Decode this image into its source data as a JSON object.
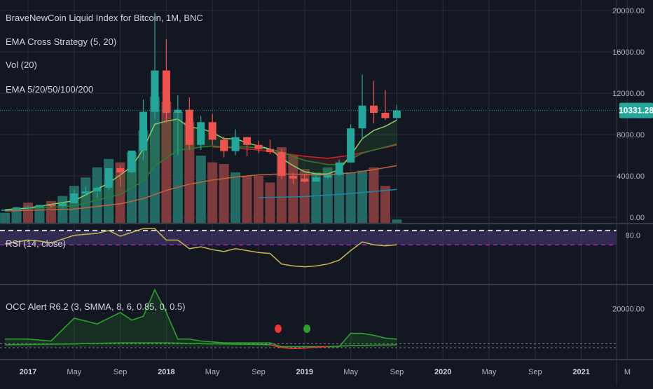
{
  "colors": {
    "background": "#131722",
    "grid": "#2a2e39",
    "separator": "#363a45",
    "up": "#26a69a",
    "down": "#ef5350",
    "vol_up": "#246a64",
    "vol_down": "#7d3b3d",
    "ema5": "#88cc66",
    "ema20": "#2e7d32",
    "ema50": "#c62828",
    "ema100": "#c0643a",
    "ema200": "#1e88a8",
    "price_line": "#26a69a",
    "price_badge": "#26a69a",
    "rsi_line": "#c9b84b",
    "rsi_band": "#4a3c78",
    "rsi_upper_dash": "#d1d4dc",
    "rsi_lower_dash": "#9c27b0",
    "occ_green": "#2e9e2e",
    "occ_red": "#e53935"
  },
  "chart_data": [
    {
      "type": "candlestick",
      "title": "BraveNewCoin Liquid Index for Bitcoin, 1M, BNC",
      "indicators": [
        "EMA Cross Strategy (5, 20)",
        "Vol (20)",
        "EMA 5/20/50/100/200"
      ],
      "x_ticks": [
        "2017",
        "May",
        "Sep",
        "2018",
        "May",
        "Sep",
        "2019",
        "May",
        "Sep",
        "2020",
        "May",
        "Sep",
        "2021",
        "M"
      ],
      "x_tick_months": [
        0,
        4,
        8,
        12,
        16,
        20,
        24,
        28,
        32,
        36,
        40,
        44,
        48,
        52
      ],
      "y_ticks": [
        "20000.00",
        "16000.00",
        "12000.00",
        "8000.00",
        "4000.00",
        "0.00"
      ],
      "y_tick_values": [
        20000,
        16000,
        12000,
        8000,
        4000,
        0
      ],
      "ylim": [
        0,
        20000
      ],
      "last_price": "10331.28",
      "last_price_value": 10331,
      "candles": [
        {
          "m": -2,
          "o": 700,
          "h": 760,
          "l": 680,
          "c": 740
        },
        {
          "m": -1,
          "o": 740,
          "h": 980,
          "l": 730,
          "c": 960
        },
        {
          "m": 0,
          "o": 960,
          "h": 1150,
          "l": 750,
          "c": 970
        },
        {
          "m": 1,
          "o": 970,
          "h": 1200,
          "l": 920,
          "c": 1190
        },
        {
          "m": 2,
          "o": 1190,
          "h": 1300,
          "l": 900,
          "c": 1080
        },
        {
          "m": 3,
          "o": 1080,
          "h": 1450,
          "l": 890,
          "c": 1350
        },
        {
          "m": 4,
          "o": 1350,
          "h": 2700,
          "l": 1330,
          "c": 2300
        },
        {
          "m": 5,
          "o": 2300,
          "h": 3000,
          "l": 2150,
          "c": 2500
        },
        {
          "m": 6,
          "o": 2500,
          "h": 2950,
          "l": 1850,
          "c": 2850
        },
        {
          "m": 7,
          "o": 2850,
          "h": 4700,
          "l": 2650,
          "c": 4750
        },
        {
          "m": 8,
          "o": 4750,
          "h": 5000,
          "l": 3000,
          "c": 4350
        },
        {
          "m": 9,
          "o": 4350,
          "h": 6450,
          "l": 4250,
          "c": 6450
        },
        {
          "m": 10,
          "o": 6450,
          "h": 11400,
          "l": 5500,
          "c": 10200
        },
        {
          "m": 11,
          "o": 10200,
          "h": 19800,
          "l": 9500,
          "c": 14200
        },
        {
          "m": 12,
          "o": 14200,
          "h": 17200,
          "l": 9100,
          "c": 10100
        },
        {
          "m": 13,
          "o": 10100,
          "h": 11800,
          "l": 6000,
          "c": 10400
        },
        {
          "m": 14,
          "o": 10400,
          "h": 11600,
          "l": 6500,
          "c": 7000
        },
        {
          "m": 15,
          "o": 7000,
          "h": 9800,
          "l": 6500,
          "c": 9200
        },
        {
          "m": 16,
          "o": 9200,
          "h": 10000,
          "l": 7000,
          "c": 7500
        },
        {
          "m": 17,
          "o": 7500,
          "h": 7800,
          "l": 5800,
          "c": 6400
        },
        {
          "m": 18,
          "o": 6400,
          "h": 8500,
          "l": 6000,
          "c": 7750
        },
        {
          "m": 19,
          "o": 7750,
          "h": 7800,
          "l": 5900,
          "c": 7000
        },
        {
          "m": 20,
          "o": 7000,
          "h": 7400,
          "l": 6200,
          "c": 6600
        },
        {
          "m": 21,
          "o": 6600,
          "h": 7500,
          "l": 6100,
          "c": 6300
        },
        {
          "m": 22,
          "o": 6300,
          "h": 6600,
          "l": 3700,
          "c": 4000
        },
        {
          "m": 23,
          "o": 4000,
          "h": 4300,
          "l": 3200,
          "c": 3750
        },
        {
          "m": 24,
          "o": 3750,
          "h": 4100,
          "l": 3350,
          "c": 3450
        },
        {
          "m": 25,
          "o": 3450,
          "h": 4200,
          "l": 3400,
          "c": 3850
        },
        {
          "m": 26,
          "o": 3850,
          "h": 4200,
          "l": 3700,
          "c": 4100
        },
        {
          "m": 27,
          "o": 4100,
          "h": 5600,
          "l": 4000,
          "c": 5300
        },
        {
          "m": 28,
          "o": 5300,
          "h": 9000,
          "l": 5300,
          "c": 8600
        },
        {
          "m": 29,
          "o": 8600,
          "h": 13800,
          "l": 7500,
          "c": 10800
        },
        {
          "m": 30,
          "o": 10800,
          "h": 13200,
          "l": 9100,
          "c": 10100
        },
        {
          "m": 31,
          "o": 10100,
          "h": 12300,
          "l": 9400,
          "c": 9600
        },
        {
          "m": 32,
          "o": 9600,
          "h": 10900,
          "l": 9400,
          "c": 10331
        }
      ],
      "ema5": [
        [
          -2,
          740
        ],
        [
          0,
          900
        ],
        [
          4,
          1600
        ],
        [
          7,
          3300
        ],
        [
          9,
          4900
        ],
        [
          10,
          6600
        ],
        [
          11,
          9000
        ],
        [
          12,
          9300
        ],
        [
          13,
          9500
        ],
        [
          14,
          8700
        ],
        [
          15,
          8600
        ],
        [
          16,
          8200
        ],
        [
          17,
          7600
        ],
        [
          18,
          7600
        ],
        [
          19,
          7200
        ],
        [
          20,
          6900
        ],
        [
          21,
          6600
        ],
        [
          22,
          5700
        ],
        [
          23,
          5000
        ],
        [
          24,
          4400
        ],
        [
          25,
          4200
        ],
        [
          26,
          4200
        ],
        [
          27,
          4600
        ],
        [
          28,
          6000
        ],
        [
          29,
          7600
        ],
        [
          30,
          8400
        ],
        [
          31,
          8800
        ],
        [
          32,
          9400
        ]
      ],
      "ema20": [
        [
          -2,
          700
        ],
        [
          4,
          1100
        ],
        [
          8,
          2200
        ],
        [
          10,
          3500
        ],
        [
          11,
          5000
        ],
        [
          12,
          5700
        ],
        [
          13,
          6500
        ],
        [
          14,
          6600
        ],
        [
          15,
          6800
        ],
        [
          16,
          6900
        ],
        [
          17,
          6800
        ],
        [
          18,
          6800
        ],
        [
          19,
          6800
        ],
        [
          20,
          6700
        ],
        [
          21,
          6600
        ],
        [
          22,
          6300
        ],
        [
          23,
          5900
        ],
        [
          24,
          5500
        ],
        [
          25,
          5300
        ],
        [
          26,
          5100
        ],
        [
          27,
          5100
        ],
        [
          28,
          5600
        ],
        [
          29,
          6200
        ],
        [
          30,
          6500
        ],
        [
          31,
          6800
        ],
        [
          32,
          7100
        ]
      ],
      "ema50": [
        [
          16,
          6800
        ],
        [
          18,
          6700
        ],
        [
          20,
          6500
        ],
        [
          22,
          6200
        ],
        [
          24,
          5900
        ],
        [
          26,
          5700
        ],
        [
          28,
          6000
        ],
        [
          30,
          6500
        ],
        [
          32,
          7000
        ]
      ],
      "ema100": [
        [
          -2,
          600
        ],
        [
          4,
          800
        ],
        [
          8,
          1300
        ],
        [
          10,
          1800
        ],
        [
          12,
          2600
        ],
        [
          14,
          3200
        ],
        [
          16,
          3600
        ],
        [
          18,
          3900
        ],
        [
          20,
          4100
        ],
        [
          22,
          4200
        ],
        [
          24,
          4150
        ],
        [
          26,
          4100
        ],
        [
          28,
          4300
        ],
        [
          30,
          4600
        ],
        [
          32,
          5000
        ]
      ],
      "ema200": [
        [
          20,
          1900
        ],
        [
          24,
          2000
        ],
        [
          28,
          2300
        ],
        [
          32,
          2700
        ]
      ],
      "volumes": [
        {
          "m": -2,
          "v": 0.06,
          "up": true
        },
        {
          "m": -1,
          "v": 0.08,
          "up": true
        },
        {
          "m": 0,
          "v": 0.12,
          "up": false
        },
        {
          "m": 1,
          "v": 0.1,
          "up": true
        },
        {
          "m": 2,
          "v": 0.13,
          "up": false
        },
        {
          "m": 3,
          "v": 0.16,
          "up": true
        },
        {
          "m": 4,
          "v": 0.22,
          "up": true
        },
        {
          "m": 5,
          "v": 0.27,
          "up": true
        },
        {
          "m": 6,
          "v": 0.33,
          "up": true
        },
        {
          "m": 7,
          "v": 0.38,
          "up": true
        },
        {
          "m": 8,
          "v": 0.36,
          "up": false
        },
        {
          "m": 9,
          "v": 0.42,
          "up": true
        },
        {
          "m": 10,
          "v": 0.55,
          "up": true
        },
        {
          "m": 11,
          "v": 0.75,
          "up": true
        },
        {
          "m": 12,
          "v": 0.72,
          "up": false
        },
        {
          "m": 13,
          "v": 0.66,
          "up": true
        },
        {
          "m": 14,
          "v": 0.6,
          "up": false
        },
        {
          "m": 15,
          "v": 0.4,
          "up": true
        },
        {
          "m": 16,
          "v": 0.36,
          "up": false
        },
        {
          "m": 17,
          "v": 0.35,
          "up": false
        },
        {
          "m": 18,
          "v": 0.3,
          "up": true
        },
        {
          "m": 19,
          "v": 0.28,
          "up": false
        },
        {
          "m": 20,
          "v": 0.28,
          "up": false
        },
        {
          "m": 21,
          "v": 0.24,
          "up": false
        },
        {
          "m": 22,
          "v": 0.45,
          "up": false
        },
        {
          "m": 23,
          "v": 0.4,
          "up": false
        },
        {
          "m": 24,
          "v": 0.32,
          "up": false
        },
        {
          "m": 25,
          "v": 0.3,
          "up": true
        },
        {
          "m": 26,
          "v": 0.33,
          "up": true
        },
        {
          "m": 27,
          "v": 0.3,
          "up": true
        },
        {
          "m": 28,
          "v": 0.3,
          "up": true
        },
        {
          "m": 29,
          "v": 0.31,
          "up": true
        },
        {
          "m": 30,
          "v": 0.33,
          "up": false
        },
        {
          "m": 31,
          "v": 0.22,
          "up": false
        },
        {
          "m": 32,
          "v": 0.02,
          "up": true
        }
      ]
    },
    {
      "type": "line",
      "title": "RSI (14, close)",
      "y_ticks": [
        "80.0"
      ],
      "y_tick_values": [
        80
      ],
      "ylim": [
        30,
        90
      ],
      "upper_band": 85,
      "lower_band": 70,
      "series": [
        {
          "values": [
            [
              -2,
              71
            ],
            [
              0,
              75
            ],
            [
              1,
              74
            ],
            [
              2,
              72
            ],
            [
              4,
              80
            ],
            [
              5,
              81
            ],
            [
              6,
              82
            ],
            [
              7,
              85
            ],
            [
              8,
              79
            ],
            [
              9,
              83
            ],
            [
              10,
              87
            ],
            [
              11,
              87
            ],
            [
              12,
              75
            ],
            [
              13,
              75
            ],
            [
              14,
              66
            ],
            [
              15,
              68
            ],
            [
              16,
              65
            ],
            [
              17,
              63
            ],
            [
              18,
              66
            ],
            [
              19,
              64
            ],
            [
              20,
              62
            ],
            [
              21,
              61
            ],
            [
              22,
              50
            ],
            [
              23,
              48
            ],
            [
              24,
              47
            ],
            [
              25,
              48
            ],
            [
              26,
              50
            ],
            [
              27,
              54
            ],
            [
              28,
              64
            ],
            [
              29,
              73
            ],
            [
              30,
              70
            ],
            [
              31,
              69
            ],
            [
              32,
              70
            ]
          ]
        }
      ]
    },
    {
      "type": "area",
      "title": "OCC Alert R6.2 (3, SMMA, 8, 6, 0.85, 0, 0.5)",
      "y_ticks": [
        "20000.00"
      ],
      "y_tick_values": [
        20000
      ],
      "ylim": [
        -2000,
        32000
      ],
      "series": [
        {
          "values": [
            [
              -2,
              4000
            ],
            [
              0,
              4000
            ],
            [
              2,
              3000
            ],
            [
              4,
              15000
            ],
            [
              6,
              12000
            ],
            [
              8,
              18000
            ],
            [
              9,
              14000
            ],
            [
              10,
              16000
            ],
            [
              11,
              30000
            ],
            [
              12,
              18000
            ],
            [
              13,
              4000
            ],
            [
              14,
              4000
            ],
            [
              15,
              3000
            ],
            [
              16,
              2500
            ],
            [
              17,
              2000
            ],
            [
              18,
              2000
            ],
            [
              19,
              2000
            ],
            [
              20,
              2000
            ],
            [
              21,
              2000
            ],
            [
              22,
              0
            ],
            [
              23,
              0
            ],
            [
              24,
              0
            ],
            [
              25,
              0
            ],
            [
              26,
              0
            ],
            [
              27,
              0
            ],
            [
              28,
              7000
            ],
            [
              29,
              7000
            ],
            [
              30,
              6000
            ],
            [
              31,
              4500
            ],
            [
              32,
              4000
            ]
          ]
        },
        {
          "values": [
            [
              -2,
              1000
            ],
            [
              4,
              1500
            ],
            [
              8,
              2000
            ],
            [
              12,
              2000
            ],
            [
              16,
              1500
            ],
            [
              20,
              1200
            ],
            [
              21,
              1000
            ],
            [
              22,
              -500
            ],
            [
              23,
              -1000
            ],
            [
              24,
              -800
            ],
            [
              25,
              -300
            ],
            [
              26,
              0
            ],
            [
              28,
              500
            ],
            [
              30,
              800
            ],
            [
              32,
              1000
            ]
          ]
        }
      ],
      "reference_lines": [
        -500,
        1500
      ],
      "signals": [
        {
          "m": 21.7,
          "direction": "sell"
        },
        {
          "m": 24.2,
          "direction": "buy"
        }
      ]
    }
  ]
}
